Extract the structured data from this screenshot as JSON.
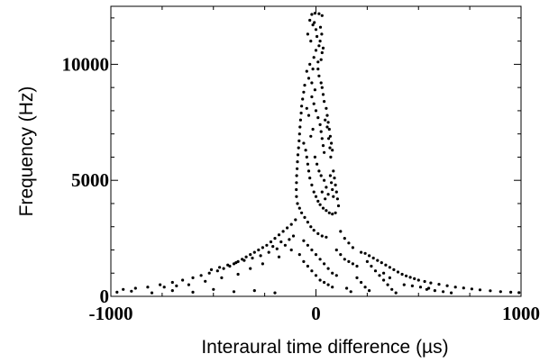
{
  "chart_data": {
    "type": "scatter",
    "title": "",
    "xlabel": "Interaural time difference  (µs)",
    "ylabel": "Frequency  (Hz)",
    "xlim": [
      -1000,
      1000
    ],
    "ylim": [
      0,
      12500
    ],
    "xticks": [
      -1000,
      0,
      1000
    ],
    "yticks": [
      0,
      5000,
      10000
    ],
    "xtick_labels": [
      "-1000",
      "0",
      "1000"
    ],
    "ytick_labels": [
      "0",
      "5000",
      "10000"
    ],
    "grid": false,
    "legend": "none",
    "marker_color": "#000000",
    "series": [
      {
        "points": [
          [
            -20,
            12150
          ],
          [
            -5,
            12200
          ],
          [
            15,
            12180
          ],
          [
            30,
            12100
          ],
          [
            -30,
            11900
          ],
          [
            -15,
            11700
          ],
          [
            0,
            11500
          ],
          [
            5,
            11200
          ],
          [
            -40,
            11300
          ],
          [
            -25,
            11000
          ],
          [
            15,
            10800
          ],
          [
            20,
            11000
          ],
          [
            30,
            10500
          ],
          [
            25,
            10200
          ],
          [
            -10,
            10300
          ],
          [
            -30,
            10000
          ],
          [
            -45,
            9700
          ],
          [
            -35,
            9400
          ],
          [
            -20,
            9200
          ],
          [
            -5,
            8900
          ],
          [
            10,
            9800
          ],
          [
            15,
            9500
          ],
          [
            25,
            9200
          ],
          [
            30,
            9000
          ],
          [
            35,
            8700
          ],
          [
            40,
            8400
          ],
          [
            50,
            8100
          ],
          [
            55,
            7800
          ],
          [
            -55,
            9100
          ],
          [
            -60,
            8800
          ],
          [
            -65,
            8500
          ],
          [
            -70,
            8200
          ],
          [
            -72,
            7900
          ],
          [
            -75,
            7600
          ],
          [
            -78,
            7300
          ],
          [
            -80,
            7000
          ],
          [
            -82,
            6700
          ],
          [
            -85,
            6400
          ],
          [
            -88,
            6100
          ],
          [
            -90,
            5800
          ],
          [
            -92,
            5500
          ],
          [
            -94,
            5200
          ],
          [
            -95,
            4900
          ],
          [
            -96,
            4600
          ],
          [
            -95,
            4300
          ],
          [
            -90,
            4000
          ],
          [
            -80,
            3800
          ],
          [
            -70,
            3600
          ],
          [
            -55,
            3400
          ],
          [
            -40,
            3200
          ],
          [
            -25,
            3000
          ],
          [
            -10,
            2850
          ],
          [
            10,
            2700
          ],
          [
            30,
            2600
          ],
          [
            50,
            2550
          ],
          [
            -20,
            8600
          ],
          [
            -10,
            8300
          ],
          [
            0,
            8000
          ],
          [
            10,
            7700
          ],
          [
            20,
            7400
          ],
          [
            25,
            7100
          ],
          [
            30,
            6800
          ],
          [
            35,
            6500
          ],
          [
            40,
            6200
          ],
          [
            60,
            7500
          ],
          [
            65,
            7200
          ],
          [
            70,
            6900
          ],
          [
            75,
            6600
          ],
          [
            80,
            6300
          ],
          [
            -60,
            6600
          ],
          [
            -50,
            6300
          ],
          [
            -45,
            6000
          ],
          [
            -40,
            5700
          ],
          [
            -35,
            5400
          ],
          [
            -30,
            5100
          ],
          [
            -20,
            4800
          ],
          [
            -10,
            4500
          ],
          [
            0,
            4300
          ],
          [
            10,
            4100
          ],
          [
            20,
            3950
          ],
          [
            35,
            3800
          ],
          [
            50,
            3700
          ],
          [
            65,
            3600
          ],
          [
            80,
            3550
          ],
          [
            95,
            3600
          ],
          [
            85,
            5400
          ],
          [
            90,
            5100
          ],
          [
            95,
            4800
          ],
          [
            100,
            4500
          ],
          [
            105,
            4200
          ],
          [
            110,
            3900
          ],
          [
            70,
            5200
          ],
          [
            75,
            4900
          ],
          [
            80,
            4600
          ],
          [
            85,
            4300
          ],
          [
            40,
            5000
          ],
          [
            50,
            4700
          ],
          [
            60,
            4400
          ],
          [
            30,
            4500
          ],
          [
            45,
            4200
          ],
          [
            -100,
            3300
          ],
          [
            -120,
            3100
          ],
          [
            -140,
            2950
          ],
          [
            -160,
            2800
          ],
          [
            -180,
            2650
          ],
          [
            -200,
            2500
          ],
          [
            -220,
            2350
          ],
          [
            -240,
            2200
          ],
          [
            -260,
            2100
          ],
          [
            -280,
            2000
          ],
          [
            -300,
            1900
          ],
          [
            -320,
            1800
          ],
          [
            -340,
            1700
          ],
          [
            -360,
            1600
          ],
          [
            -380,
            1500
          ],
          [
            -400,
            1400
          ],
          [
            -420,
            1300
          ],
          [
            -450,
            1200
          ],
          [
            -480,
            1100
          ],
          [
            -520,
            1000
          ],
          [
            -560,
            900
          ],
          [
            -600,
            800
          ],
          [
            -650,
            700
          ],
          [
            -700,
            600
          ],
          [
            -760,
            500
          ],
          [
            -820,
            400
          ],
          [
            -880,
            350
          ],
          [
            -940,
            300
          ],
          [
            -150,
            2200
          ],
          [
            -190,
            2050
          ],
          [
            -230,
            1900
          ],
          [
            -270,
            1750
          ],
          [
            -310,
            1650
          ],
          [
            -350,
            1550
          ],
          [
            -390,
            1450
          ],
          [
            -430,
            1350
          ],
          [
            -470,
            1250
          ],
          [
            -510,
            1150
          ],
          [
            -110,
            2600
          ],
          [
            -130,
            2450
          ],
          [
            -170,
            2350
          ],
          [
            -210,
            2150
          ],
          [
            -60,
            2400
          ],
          [
            -40,
            2200
          ],
          [
            -20,
            2000
          ],
          [
            0,
            1800
          ],
          [
            20,
            1600
          ],
          [
            40,
            1400
          ],
          [
            60,
            1200
          ],
          [
            80,
            1000
          ],
          [
            100,
            900
          ],
          [
            -80,
            1800
          ],
          [
            -60,
            1500
          ],
          [
            -40,
            1300
          ],
          [
            -20,
            1100
          ],
          [
            0,
            900
          ],
          [
            20,
            700
          ],
          [
            40,
            600
          ],
          [
            60,
            500
          ],
          [
            80,
            400
          ],
          [
            100,
            2000
          ],
          [
            120,
            1800
          ],
          [
            140,
            1600
          ],
          [
            160,
            1500
          ],
          [
            180,
            1400
          ],
          [
            200,
            1300
          ],
          [
            220,
            1900
          ],
          [
            240,
            1850
          ],
          [
            260,
            1750
          ],
          [
            280,
            1650
          ],
          [
            300,
            1550
          ],
          [
            320,
            1450
          ],
          [
            340,
            1350
          ],
          [
            360,
            1250
          ],
          [
            380,
            1150
          ],
          [
            400,
            1050
          ],
          [
            420,
            950
          ],
          [
            440,
            880
          ],
          [
            460,
            820
          ],
          [
            480,
            760
          ],
          [
            500,
            700
          ],
          [
            530,
            640
          ],
          [
            560,
            580
          ],
          [
            600,
            520
          ],
          [
            640,
            460
          ],
          [
            680,
            400
          ],
          [
            720,
            360
          ],
          [
            760,
            320
          ],
          [
            800,
            280
          ],
          [
            850,
            240
          ],
          [
            900,
            200
          ],
          [
            950,
            180
          ],
          [
            990,
            160
          ],
          [
            250,
            1500
          ],
          [
            270,
            1300
          ],
          [
            290,
            1100
          ],
          [
            310,
            900
          ],
          [
            330,
            700
          ],
          [
            350,
            500
          ],
          [
            370,
            300
          ],
          [
            390,
            150
          ],
          [
            200,
            800
          ],
          [
            220,
            600
          ],
          [
            240,
            400
          ],
          [
            260,
            250
          ],
          [
            150,
            350
          ],
          [
            170,
            200
          ],
          [
            -200,
            150
          ],
          [
            -300,
            250
          ],
          [
            -400,
            200
          ],
          [
            -500,
            300
          ],
          [
            -600,
            180
          ],
          [
            -700,
            250
          ],
          [
            -800,
            150
          ],
          [
            -900,
            220
          ],
          [
            -970,
            180
          ],
          [
            120,
            2800
          ],
          [
            140,
            2500
          ],
          [
            160,
            2300
          ],
          [
            180,
            2100
          ],
          [
            -5,
            6000
          ],
          [
            5,
            5700
          ],
          [
            15,
            5400
          ],
          [
            25,
            5200
          ],
          [
            -15,
            7200
          ],
          [
            -25,
            6900
          ],
          [
            -35,
            7800
          ],
          [
            -45,
            8100
          ],
          [
            0,
            10600
          ],
          [
            10,
            10100
          ],
          [
            -15,
            9800
          ],
          [
            -8,
            11800
          ],
          [
            22,
            11600
          ],
          [
            28,
            11300
          ],
          [
            35,
            10700
          ],
          [
            45,
            7600
          ],
          [
            55,
            7300
          ],
          [
            62,
            6800
          ],
          [
            68,
            6400
          ],
          [
            72,
            6000
          ],
          [
            540,
            300
          ],
          [
            580,
            250
          ],
          [
            620,
            200
          ],
          [
            660,
            150
          ],
          [
            430,
            500
          ],
          [
            470,
            450
          ],
          [
            510,
            400
          ],
          [
            550,
            350
          ],
          [
            330,
            1000
          ],
          [
            360,
            800
          ],
          [
            -620,
            500
          ],
          [
            -680,
            450
          ],
          [
            -740,
            400
          ],
          [
            -540,
            650
          ],
          [
            -460,
            800
          ],
          [
            -380,
            950
          ],
          [
            -320,
            1200
          ],
          [
            -260,
            1400
          ],
          [
            -180,
            1700
          ],
          [
            -120,
            2000
          ]
        ]
      }
    ]
  }
}
